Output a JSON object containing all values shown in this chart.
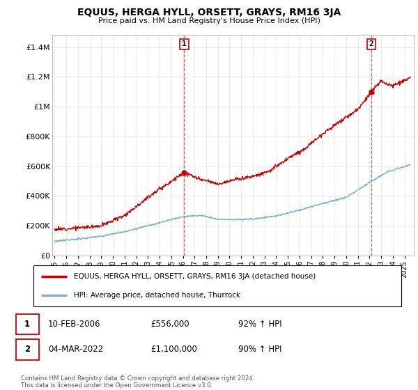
{
  "title": "EQUUS, HERGA HYLL, ORSETT, GRAYS, RM16 3JA",
  "subtitle": "Price paid vs. HM Land Registry's House Price Index (HPI)",
  "ylabel_ticks": [
    "£0",
    "£200K",
    "£400K",
    "£600K",
    "£800K",
    "£1M",
    "£1.2M",
    "£1.4M"
  ],
  "ytick_values": [
    0,
    200000,
    400000,
    600000,
    800000,
    1000000,
    1200000,
    1400000
  ],
  "ylim": [
    0,
    1480000
  ],
  "xlim_start": 1994.8,
  "xlim_end": 2025.8,
  "sale1_x": 2006.11,
  "sale1_y": 556000,
  "sale1_label": "1",
  "sale2_x": 2022.17,
  "sale2_y": 1100000,
  "sale2_label": "2",
  "red_line_color": "#cc0000",
  "blue_line_color": "#7ab0d4",
  "sale_dot_color": "#cc0000",
  "annotation_line_color": "#cc3333",
  "grid_color": "#e0e0e0",
  "legend_label_red": "EQUUS, HERGA HYLL, ORSETT, GRAYS, RM16 3JA (detached house)",
  "legend_label_blue": "HPI: Average price, detached house, Thurrock",
  "table_row1": [
    "1",
    "10-FEB-2006",
    "£556,000",
    "92% ↑ HPI"
  ],
  "table_row2": [
    "2",
    "04-MAR-2022",
    "£1,100,000",
    "90% ↑ HPI"
  ],
  "footer": "Contains HM Land Registry data © Crown copyright and database right 2024.\nThis data is licensed under the Open Government Licence v3.0.",
  "xtick_years": [
    1995,
    1996,
    1997,
    1998,
    1999,
    2000,
    2001,
    2002,
    2003,
    2004,
    2005,
    2006,
    2007,
    2008,
    2009,
    2010,
    2011,
    2012,
    2013,
    2014,
    2015,
    2016,
    2017,
    2018,
    2019,
    2020,
    2021,
    2022,
    2023,
    2024,
    2025
  ],
  "red_keypoints_x": [
    1995.0,
    1997.0,
    1999.0,
    2001.0,
    2003.5,
    2006.11,
    2007.5,
    2009.0,
    2010.5,
    2012.0,
    2013.5,
    2015.0,
    2016.5,
    2018.0,
    2019.5,
    2021.0,
    2022.17,
    2023.0,
    2024.0,
    2025.5
  ],
  "red_keypoints_y": [
    175000,
    185000,
    200000,
    270000,
    420000,
    556000,
    510000,
    480000,
    510000,
    530000,
    570000,
    650000,
    720000,
    820000,
    900000,
    980000,
    1100000,
    1170000,
    1140000,
    1190000
  ],
  "blue_keypoints_x": [
    1995.0,
    1997.0,
    1999.0,
    2001.0,
    2003.0,
    2006.0,
    2007.5,
    2009.0,
    2010.0,
    2012.0,
    2014.0,
    2016.0,
    2018.0,
    2020.0,
    2022.0,
    2023.5,
    2025.5
  ],
  "blue_keypoints_y": [
    95000,
    110000,
    130000,
    160000,
    200000,
    260000,
    270000,
    245000,
    240000,
    245000,
    265000,
    305000,
    350000,
    390000,
    490000,
    560000,
    610000
  ]
}
